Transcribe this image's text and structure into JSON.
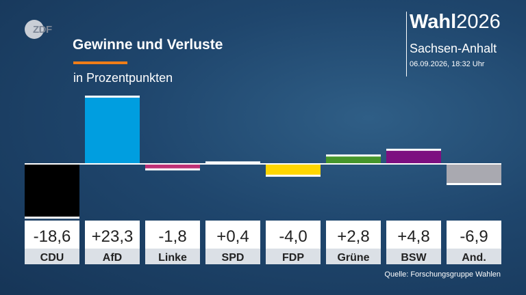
{
  "logo": "ZDF",
  "header": {
    "title": "Gewinne und Verluste",
    "subtitle": "in Prozentpunkten",
    "brand_bold": "Wahl",
    "brand_year": "2026",
    "region": "Sachsen-Anhalt",
    "timestamp": "06.09.2026, 18:32 Uhr"
  },
  "source": "Quelle: Forschungsgruppe Wahlen",
  "colors": {
    "accent": "#f07d18",
    "background": "#1f466d"
  },
  "chart_data": {
    "type": "bar",
    "title": "Gewinne und Verluste",
    "subtitle": "in Prozentpunkten",
    "categories": [
      "CDU",
      "AfD",
      "Linke",
      "SPD",
      "FDP",
      "Grüne",
      "BSW",
      "And."
    ],
    "values": [
      -18.6,
      23.3,
      -1.8,
      0.4,
      -4.0,
      2.8,
      4.8,
      -6.9
    ],
    "value_labels": [
      "-18,6",
      "+23,3",
      "-1,8",
      "+0,4",
      "-4,0",
      "+2,8",
      "+4,8",
      "-6,9"
    ],
    "colors": [
      "#000000",
      "#009ee0",
      "#be3075",
      "#e3000f",
      "#ffd600",
      "#46962b",
      "#7d0f80",
      "#a9a9b0"
    ],
    "ylim": [
      -18.6,
      23.3
    ],
    "grid": false,
    "legend": "none"
  }
}
